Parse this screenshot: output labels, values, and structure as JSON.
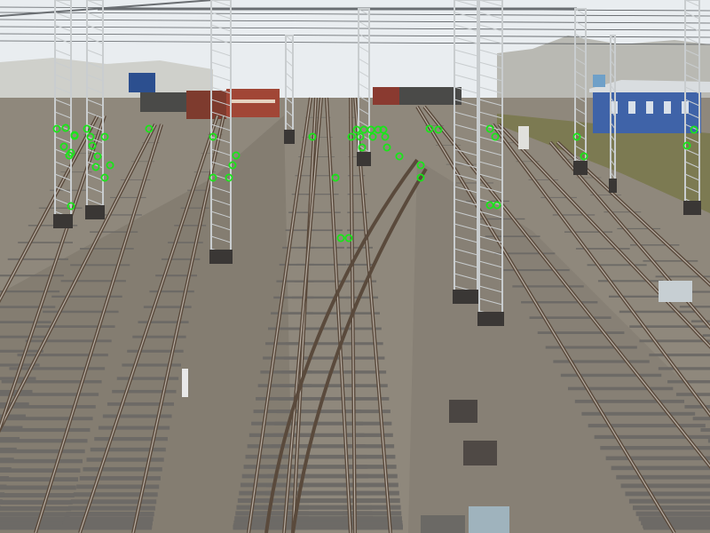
{
  "scene": {
    "description_kind": "railway-yard-photo-with-detected-keypoints",
    "colors": {
      "sky": "#e9edf0",
      "ballast": "#8f887c",
      "ballast_dark": "#6f695f",
      "rail": "#5a4a3c",
      "rail_highlight": "#b9b0a6",
      "sleeper": "#6d6a66",
      "mast": "#c9cdcf",
      "foundation": "#3a3735",
      "grass": "#7c7a52",
      "building_blue": "#3f63a8",
      "train_red": "#7e3b2e",
      "train_dark": "#4a4a48",
      "trees": "#b9b9b3",
      "marker": "#19e619"
    },
    "keypoint_count": 58
  }
}
